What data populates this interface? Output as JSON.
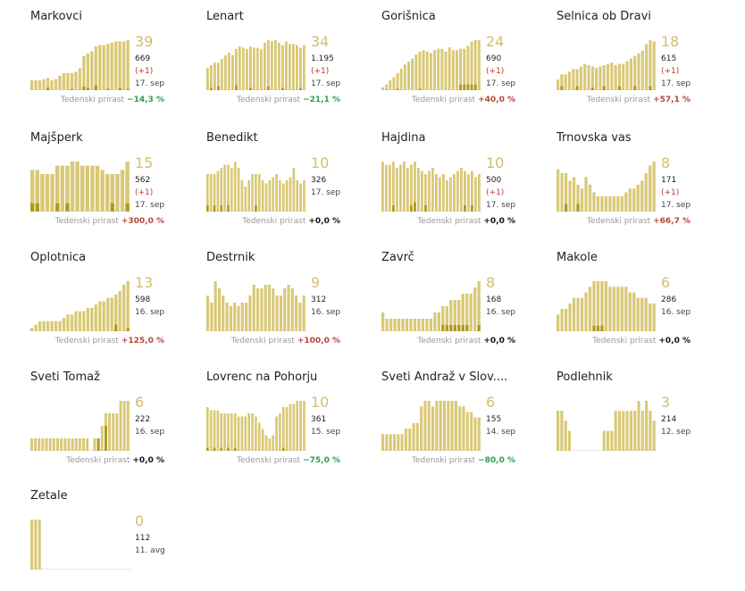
{
  "growth_label": "Tedenski prirast",
  "colors": {
    "bar_light": "#d9c877",
    "bar_dark": "#b09a1c",
    "accent_number": "#d2bf6c",
    "negative": "#2e9d55",
    "positive": "#b5473a",
    "zero": "#111111"
  },
  "chart_data": [
    {
      "type": "bar",
      "title": "Markovci",
      "current": "39",
      "total": "669",
      "delta": "(+1)",
      "date": "17. sep",
      "growth": "−14,3 %",
      "growth_sign": "neg",
      "values": [
        8,
        8,
        8,
        9,
        10,
        8,
        9,
        12,
        14,
        14,
        14,
        15,
        18,
        28,
        30,
        32,
        36,
        37,
        37,
        38,
        39,
        40,
        40,
        40,
        41
      ],
      "dark": [
        0,
        0,
        0,
        0,
        2,
        0,
        0,
        0,
        0,
        0,
        1,
        0,
        0,
        3,
        2,
        0,
        4,
        0,
        0,
        1,
        0,
        0,
        2,
        0,
        1
      ]
    },
    {
      "type": "bar",
      "title": "Lenart",
      "current": "34",
      "total": "1.195",
      "delta": "(+1)",
      "date": "17. sep",
      "growth": "−21,1 %",
      "growth_sign": "neg",
      "values": [
        18,
        20,
        22,
        22,
        25,
        28,
        30,
        28,
        33,
        35,
        34,
        33,
        35,
        34,
        34,
        33,
        38,
        40,
        39,
        40,
        38,
        36,
        39,
        37,
        37,
        36,
        34,
        36
      ],
      "dark": [
        0,
        2,
        0,
        3,
        0,
        0,
        0,
        0,
        4,
        0,
        0,
        0,
        2,
        0,
        0,
        0,
        0,
        3,
        0,
        0,
        0,
        2,
        0,
        0,
        0,
        0,
        2,
        0
      ]
    },
    {
      "type": "bar",
      "title": "Gorišnica",
      "current": "24",
      "total": "690",
      "delta": "(+1)",
      "date": "17. sep",
      "growth": "+40,0 %",
      "growth_sign": "pos",
      "values": [
        2,
        4,
        7,
        9,
        12,
        15,
        18,
        20,
        22,
        25,
        27,
        28,
        27,
        26,
        28,
        29,
        29,
        27,
        30,
        28,
        28,
        29,
        29,
        31,
        34,
        35,
        35
      ],
      "dark": [
        0,
        0,
        0,
        0,
        1,
        0,
        0,
        0,
        0,
        0,
        1,
        0,
        0,
        0,
        0,
        0,
        0,
        0,
        0,
        0,
        0,
        4,
        4,
        4,
        4,
        4,
        0
      ]
    },
    {
      "type": "bar",
      "title": "Selnica ob Dravi",
      "current": "18",
      "total": "615",
      "delta": "(+1)",
      "date": "17. sep",
      "growth": "+57,1 %",
      "growth_sign": "pos",
      "values": [
        8,
        12,
        12,
        14,
        16,
        16,
        18,
        20,
        19,
        18,
        17,
        18,
        19,
        20,
        21,
        19,
        20,
        20,
        22,
        24,
        26,
        28,
        30,
        35,
        38,
        37
      ],
      "dark": [
        0,
        3,
        0,
        0,
        0,
        3,
        0,
        0,
        0,
        2,
        0,
        0,
        3,
        0,
        0,
        0,
        3,
        0,
        0,
        0,
        3,
        0,
        0,
        0,
        3,
        0
      ]
    },
    {
      "type": "bar",
      "title": "Majšperk",
      "current": "15",
      "total": "562",
      "delta": "(+1)",
      "date": "17. sep",
      "growth": "+300,0 %",
      "growth_sign": "pos",
      "values": [
        10,
        10,
        9,
        9,
        9,
        11,
        11,
        11,
        12,
        12,
        11,
        11,
        11,
        11,
        10,
        9,
        9,
        9,
        10,
        12
      ],
      "dark": [
        2,
        2,
        0,
        0,
        0,
        2,
        0,
        2,
        0,
        0,
        0,
        0,
        0,
        0,
        0,
        0,
        2,
        0,
        0,
        2
      ]
    },
    {
      "type": "bar",
      "title": "Benedikt",
      "current": "10",
      "total": "326",
      "delta": "",
      "date": "17. sep",
      "growth": "+0,0 %",
      "growth_sign": "zero",
      "values": [
        12,
        12,
        12,
        13,
        14,
        15,
        15,
        14,
        16,
        14,
        10,
        8,
        10,
        12,
        12,
        12,
        10,
        9,
        10,
        11,
        12,
        10,
        9,
        10,
        11,
        14,
        10,
        9,
        10
      ],
      "dark": [
        2,
        0,
        2,
        0,
        2,
        0,
        2,
        0,
        0,
        0,
        0,
        0,
        0,
        0,
        2,
        0,
        0,
        0,
        0,
        0,
        0,
        0,
        0,
        0,
        0,
        0,
        0,
        0,
        0
      ]
    },
    {
      "type": "bar",
      "title": "Hajdina",
      "current": "10",
      "total": "500",
      "delta": "(+1)",
      "date": "17. sep",
      "growth": "+0,0 %",
      "growth_sign": "zero",
      "values": [
        16,
        15,
        15,
        16,
        14,
        15,
        16,
        14,
        15,
        16,
        14,
        13,
        12,
        13,
        14,
        12,
        11,
        12,
        10,
        11,
        12,
        13,
        14,
        13,
        12,
        13,
        11,
        12
      ],
      "dark": [
        0,
        0,
        0,
        2,
        0,
        0,
        0,
        0,
        2,
        3,
        0,
        0,
        2,
        0,
        0,
        0,
        0,
        0,
        0,
        0,
        0,
        0,
        0,
        2,
        0,
        2,
        0,
        0
      ]
    },
    {
      "type": "bar",
      "title": "Trnovska vas",
      "current": "8",
      "total": "171",
      "delta": "(+1)",
      "date": "17. sep",
      "growth": "+66,7 %",
      "growth_sign": "pos",
      "values": [
        11,
        10,
        10,
        8,
        9,
        7,
        6,
        9,
        7,
        5,
        4,
        4,
        4,
        4,
        4,
        4,
        4,
        5,
        6,
        6,
        7,
        8,
        10,
        12,
        13
      ],
      "dark": [
        0,
        0,
        2,
        0,
        0,
        2,
        0,
        0,
        0,
        0,
        0,
        0,
        0,
        0,
        0,
        0,
        0,
        0,
        0,
        0,
        0,
        0,
        0,
        0,
        0
      ]
    },
    {
      "type": "bar",
      "title": "Oplotnica",
      "current": "13",
      "total": "598",
      "delta": "",
      "date": "16. sep",
      "growth": "+125,0 %",
      "growth_sign": "pos",
      "values": [
        1,
        2,
        3,
        3,
        3,
        3,
        3,
        3,
        4,
        5,
        5,
        6,
        6,
        6,
        7,
        7,
        8,
        9,
        9,
        10,
        10,
        11,
        12,
        14,
        15
      ],
      "dark": [
        0,
        0,
        0,
        0,
        0,
        0,
        0,
        0,
        0,
        0,
        0,
        0,
        0,
        0,
        0,
        0,
        0,
        0,
        0,
        0,
        0,
        2,
        0,
        0,
        1
      ]
    },
    {
      "type": "bar",
      "title": "Destrnik",
      "current": "9",
      "total": "312",
      "delta": "",
      "date": "16. sep",
      "growth": "+100,0 %",
      "growth_sign": "pos",
      "values": [
        10,
        8,
        14,
        12,
        10,
        8,
        7,
        8,
        7,
        8,
        8,
        10,
        13,
        12,
        12,
        13,
        13,
        12,
        10,
        10,
        12,
        13,
        12,
        10,
        8,
        10
      ],
      "dark": [
        0,
        0,
        0,
        0,
        0,
        0,
        0,
        0,
        0,
        0,
        0,
        0,
        0,
        0,
        0,
        0,
        0,
        0,
        0,
        0,
        0,
        0,
        0,
        0,
        0,
        0
      ]
    },
    {
      "type": "bar",
      "title": "Zavrč",
      "current": "8",
      "total": "168",
      "delta": "",
      "date": "16. sep",
      "growth": "+0,0 %",
      "growth_sign": "zero",
      "values": [
        3,
        2,
        2,
        2,
        2,
        2,
        2,
        2,
        2,
        2,
        2,
        2,
        2,
        3,
        3,
        4,
        4,
        5,
        5,
        5,
        6,
        6,
        6,
        7,
        8
      ],
      "dark": [
        0,
        0,
        0,
        0,
        0,
        0,
        0,
        0,
        0,
        0,
        0,
        0,
        0,
        0,
        0,
        1,
        1,
        1,
        1,
        1,
        1,
        1,
        0,
        0,
        1
      ]
    },
    {
      "type": "bar",
      "title": "Makole",
      "current": "6",
      "total": "286",
      "delta": "",
      "date": "16. sep",
      "growth": "+0,0 %",
      "growth_sign": "zero",
      "values": [
        3,
        4,
        4,
        5,
        6,
        6,
        6,
        7,
        8,
        9,
        9,
        9,
        9,
        8,
        8,
        8,
        8,
        8,
        7,
        7,
        6,
        6,
        6,
        5,
        5
      ],
      "dark": [
        0,
        0,
        0,
        0,
        0,
        0,
        0,
        0,
        0,
        1,
        1,
        1,
        0,
        0,
        0,
        0,
        0,
        0,
        0,
        0,
        0,
        0,
        0,
        0,
        0
      ]
    },
    {
      "type": "bar",
      "title": "Sveti Tomaž",
      "current": "6",
      "total": "222",
      "delta": "",
      "date": "16. sep",
      "growth": "+0,0 %",
      "growth_sign": "zero",
      "values": [
        1,
        1,
        1,
        1,
        1,
        1,
        1,
        1,
        1,
        1,
        1,
        1,
        1,
        1,
        1,
        1,
        0,
        1,
        1,
        2,
        3,
        3,
        3,
        3,
        4,
        4,
        4
      ],
      "dark": [
        0,
        0,
        0,
        0,
        0,
        0,
        0,
        0,
        0,
        0,
        0,
        0,
        0,
        0,
        0,
        0,
        0,
        0,
        1,
        0,
        2,
        0,
        0,
        0,
        0,
        0,
        0
      ]
    },
    {
      "type": "bar",
      "title": "Lovrenc na Pohorju",
      "current": "10",
      "total": "361",
      "delta": "",
      "date": "15. sep",
      "growth": "−75,0 %",
      "growth_sign": "neg",
      "values": [
        14,
        13,
        13,
        13,
        12,
        12,
        12,
        12,
        12,
        11,
        11,
        11,
        12,
        12,
        11,
        9,
        7,
        5,
        4,
        5,
        11,
        12,
        14,
        14,
        15,
        15,
        16,
        16,
        16
      ],
      "dark": [
        1,
        0,
        1,
        0,
        1,
        0,
        1,
        0,
        1,
        0,
        0,
        0,
        0,
        0,
        0,
        0,
        0,
        0,
        0,
        0,
        0,
        0,
        1,
        0,
        0,
        0,
        0,
        0,
        0
      ]
    },
    {
      "type": "bar",
      "title": "Sveti Andraž v Slov....",
      "current": "6",
      "total": "155",
      "delta": "",
      "date": "14. sep",
      "growth": "−80,0 %",
      "growth_sign": "neg",
      "values": [
        3,
        3,
        3,
        3,
        3,
        3,
        4,
        4,
        5,
        5,
        8,
        9,
        9,
        8,
        9,
        9,
        9,
        9,
        9,
        9,
        8,
        8,
        7,
        7,
        6,
        6
      ],
      "dark": [
        0,
        0,
        0,
        0,
        0,
        0,
        0,
        0,
        0,
        0,
        0,
        0,
        0,
        0,
        0,
        0,
        0,
        0,
        0,
        0,
        0,
        0,
        0,
        0,
        0,
        0
      ]
    },
    {
      "type": "bar",
      "title": "Podlehnik",
      "current": "3",
      "total": "214",
      "delta": "",
      "date": "12. sep",
      "growth": "",
      "growth_sign": "zero",
      "values": [
        4,
        4,
        3,
        2,
        0,
        0,
        0,
        0,
        0,
        0,
        0,
        0,
        2,
        2,
        2,
        4,
        4,
        4,
        4,
        4,
        4,
        5,
        4,
        5,
        4,
        3
      ],
      "dark": [
        0,
        0,
        0,
        0,
        0,
        0,
        0,
        0,
        0,
        0,
        0,
        0,
        0,
        0,
        0,
        0,
        0,
        0,
        0,
        0,
        0,
        0,
        0,
        0,
        0,
        0
      ]
    },
    {
      "type": "bar",
      "title": "Žetale",
      "current": "0",
      "total": "112",
      "delta": "",
      "date": "11. avg",
      "growth": "",
      "growth_sign": "zero",
      "values": [
        1,
        1,
        1,
        0,
        0,
        0,
        0,
        0,
        0,
        0,
        0,
        0,
        0,
        0,
        0,
        0,
        0,
        0,
        0,
        0,
        0,
        0,
        0,
        0,
        0,
        0
      ],
      "dark": [
        0,
        0,
        0,
        0,
        0,
        0,
        0,
        0,
        0,
        0,
        0,
        0,
        0,
        0,
        0,
        0,
        0,
        0,
        0,
        0,
        0,
        0,
        0,
        0,
        0,
        0
      ]
    }
  ]
}
